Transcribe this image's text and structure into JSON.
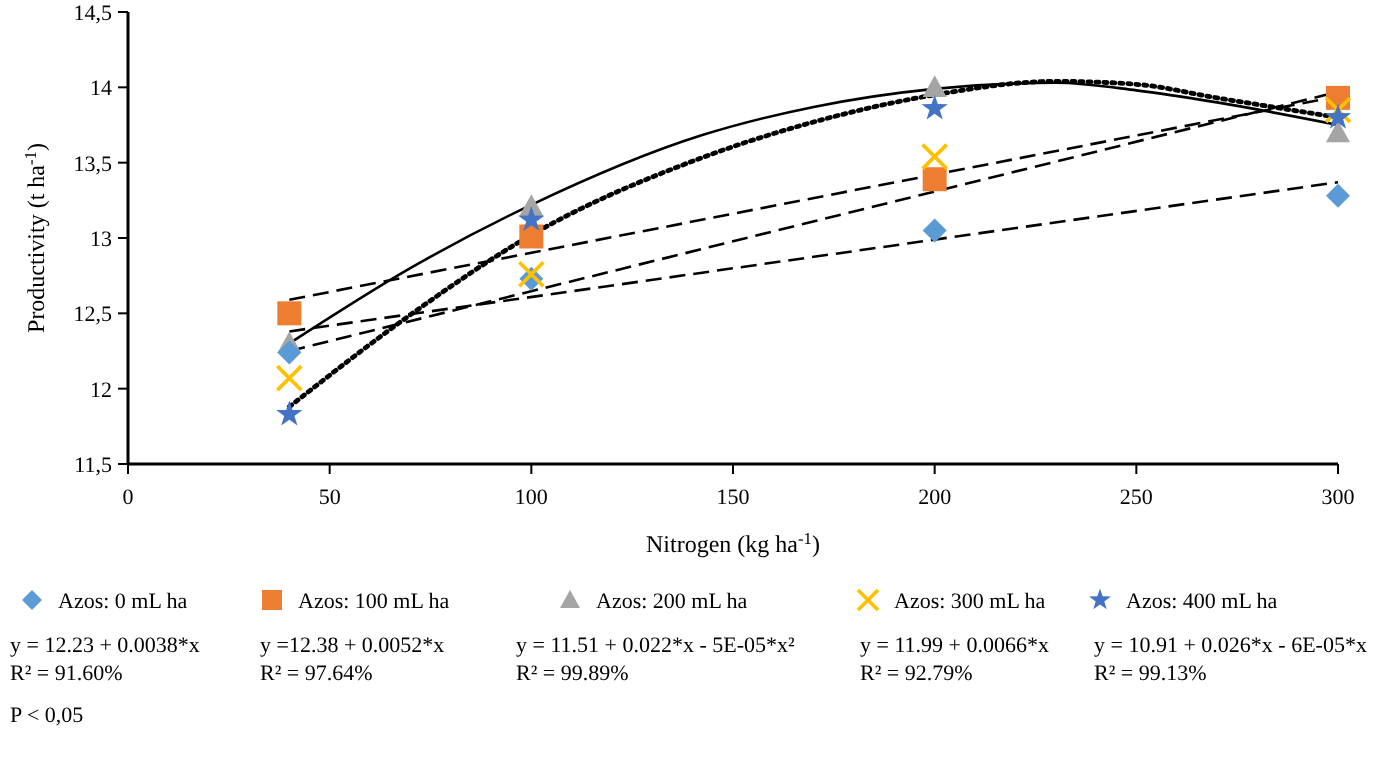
{
  "chart_data": {
    "type": "scatter",
    "xlabel": "Nitrogen (kg ha$^{-1}$)",
    "ylabel": "Productivity (t ha$^{-1}$)",
    "x": [
      40,
      100,
      200,
      300
    ],
    "xlim": [
      0,
      300
    ],
    "xticks": [
      0,
      50,
      100,
      150,
      200,
      250,
      300
    ],
    "ylim": [
      11.5,
      14.5
    ],
    "yticks": [
      {
        "value": 11.5,
        "label": "11,5"
      },
      12,
      {
        "value": 12.5,
        "label": "12,5"
      },
      13,
      {
        "value": 13.5,
        "label": "13,5"
      },
      14,
      {
        "value": 14.5,
        "label": "14,5"
      }
    ],
    "grid": false,
    "legend": "bottom",
    "series": [
      {
        "name": "Azos: 0 mL ha",
        "color": "#5b9bd5",
        "marker": "diamond",
        "values": [
          12.24,
          12.73,
          13.05,
          13.28
        ]
      },
      {
        "name": "Azos: 100 mL ha",
        "color": "#ed7d31",
        "marker": "square",
        "values": [
          12.5,
          13.01,
          13.39,
          13.93
        ]
      },
      {
        "name": "Azos: 200 mL ha",
        "color": "#a5a5a5",
        "marker": "triangle",
        "values": [
          12.3,
          13.21,
          14.0,
          13.7
        ]
      },
      {
        "name": "Azos: 300 mL ha",
        "color": "#ffc000",
        "marker": "cross",
        "values": [
          12.07,
          12.76,
          13.54,
          13.85
        ]
      },
      {
        "name": "Azos: 400 mL ha",
        "color": "#4472c4",
        "marker": "star",
        "values": [
          11.83,
          13.12,
          13.86,
          13.8
        ]
      },
      {
        "type": "line",
        "color": "#000000",
        "line_style": "dashed",
        "x": [
          40,
          300
        ],
        "values": [
          12.38,
          13.37
        ]
      },
      {
        "type": "line",
        "color": "#000000",
        "line_style": "dashed",
        "x": [
          40,
          300
        ],
        "values": [
          12.59,
          13.94
        ]
      },
      {
        "type": "line",
        "color": "#000000",
        "line_style": "solid",
        "x": [
          40,
          70,
          100,
          142,
          170,
          200,
          230,
          250,
          270,
          300
        ],
        "values": [
          12.3,
          12.8,
          13.22,
          13.68,
          13.87,
          13.99,
          14.03,
          13.98,
          13.9,
          13.75
        ]
      },
      {
        "type": "line",
        "color": "#000000",
        "line_style": "dashed",
        "x": [
          40,
          300
        ],
        "values": [
          12.25,
          13.97
        ]
      },
      {
        "type": "line",
        "color": "#000000",
        "line_style": "dotted",
        "x": [
          40,
          70,
          100,
          142,
          170,
          200,
          230,
          250,
          270,
          300
        ],
        "values": [
          11.88,
          12.49,
          13.02,
          13.53,
          13.77,
          13.95,
          14.04,
          14.02,
          13.93,
          13.8
        ]
      }
    ],
    "annotations": [
      "y = 12.23 + 0.0038*x",
      "R² = 91.60%",
      "y =12.38 + 0.0052*x",
      "R² = 97.64%",
      "y = 11.51 + 0.022*x - 5E-05*x²",
      "R² = 99.89%",
      "y = 11.99 + 0.0066*x",
      "R² = 92.79%",
      "y = 10.91 + 0.026*x - 6E-05*x",
      "R² = 99.13%",
      "P < 0,05"
    ]
  }
}
